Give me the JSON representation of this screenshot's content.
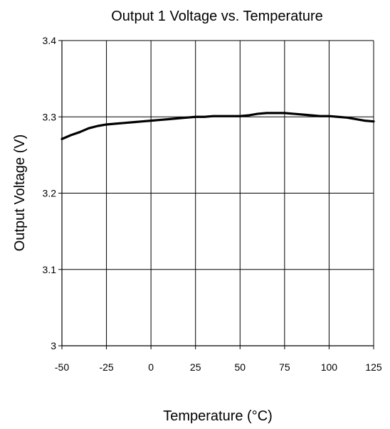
{
  "chart_data": {
    "type": "line",
    "title": "Output 1 Voltage  vs. Temperature",
    "xlabel": "Temperature (°C)",
    "ylabel": "Output Voltage (V)",
    "xlim": [
      -50,
      125
    ],
    "ylim": [
      3.0,
      3.4
    ],
    "x_ticks": [
      -50,
      -25,
      0,
      25,
      50,
      75,
      100,
      125
    ],
    "x_tick_labels": [
      "-50",
      "-25",
      "0",
      "25",
      "50",
      "75",
      "100",
      "125"
    ],
    "y_ticks": [
      3.0,
      3.1,
      3.2,
      3.3,
      3.4
    ],
    "y_tick_labels": [
      "3",
      "3.1",
      "3.2",
      "3.3",
      "3.4"
    ],
    "grid": true,
    "legend": "none",
    "colors": {
      "line": "#000000",
      "grid": "#000000",
      "background": "#ffffff"
    },
    "series": [
      {
        "x": [
          -50,
          -45,
          -40,
          -35,
          -30,
          -25,
          -20,
          -15,
          -10,
          -5,
          0,
          5,
          10,
          15,
          20,
          25,
          30,
          35,
          40,
          45,
          50,
          55,
          60,
          65,
          70,
          75,
          80,
          85,
          90,
          95,
          100,
          105,
          110,
          115,
          120,
          125
        ],
        "y": [
          3.271,
          3.276,
          3.28,
          3.285,
          3.288,
          3.29,
          3.291,
          3.292,
          3.293,
          3.294,
          3.295,
          3.296,
          3.297,
          3.298,
          3.299,
          3.3,
          3.3,
          3.301,
          3.301,
          3.301,
          3.301,
          3.302,
          3.304,
          3.305,
          3.305,
          3.305,
          3.304,
          3.303,
          3.302,
          3.301,
          3.301,
          3.3,
          3.299,
          3.297,
          3.295,
          3.294
        ]
      }
    ]
  }
}
